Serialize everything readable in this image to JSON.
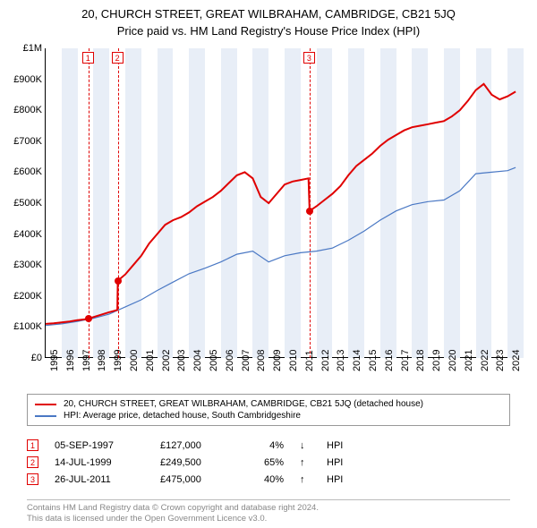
{
  "title_line1": "20, CHURCH STREET, GREAT WILBRAHAM, CAMBRIDGE, CB21 5JQ",
  "title_line2": "Price paid vs. HM Land Registry's House Price Index (HPI)",
  "chart": {
    "type": "line",
    "background_color": "#ffffff",
    "x_range": [
      1995,
      2025
    ],
    "y_range": [
      0,
      1000000
    ],
    "y_ticks": [
      0,
      100000,
      200000,
      300000,
      400000,
      500000,
      600000,
      700000,
      800000,
      900000,
      1000000
    ],
    "y_tick_labels": [
      "£0",
      "£100K",
      "£200K",
      "£300K",
      "£400K",
      "£500K",
      "£600K",
      "£700K",
      "£800K",
      "£900K",
      "£1M"
    ],
    "x_ticks": [
      1995,
      1996,
      1997,
      1998,
      1999,
      2000,
      2001,
      2002,
      2003,
      2004,
      2005,
      2006,
      2007,
      2008,
      2009,
      2010,
      2011,
      2012,
      2013,
      2014,
      2015,
      2016,
      2017,
      2018,
      2019,
      2020,
      2021,
      2022,
      2023,
      2024
    ],
    "vband_color": "#e8eef7",
    "marker_line_color": "#e00000",
    "axis_fontsize": 11,
    "series": {
      "property": {
        "label": "20, CHURCH STREET, GREAT WILBRAHAM, CAMBRIDGE, CB21 5JQ (detached house)",
        "color": "#e00000",
        "line_width": 2,
        "x": [
          1995.0,
          1995.5,
          1996.0,
          1996.5,
          1997.0,
          1997.5,
          1997.68,
          1997.68,
          1998.0,
          1998.5,
          1999.0,
          1999.5,
          1999.53,
          1999.53,
          2000.0,
          2000.5,
          2001.0,
          2001.5,
          2002.0,
          2002.5,
          2003.0,
          2003.5,
          2004.0,
          2004.5,
          2005.0,
          2005.5,
          2006.0,
          2006.5,
          2007.0,
          2007.5,
          2008.0,
          2008.5,
          2009.0,
          2009.5,
          2010.0,
          2010.5,
          2011.0,
          2011.5,
          2011.57,
          2011.57,
          2012.0,
          2012.5,
          2013.0,
          2013.5,
          2014.0,
          2014.5,
          2015.0,
          2015.5,
          2016.0,
          2016.5,
          2017.0,
          2017.5,
          2018.0,
          2018.5,
          2019.0,
          2019.5,
          2020.0,
          2020.5,
          2021.0,
          2021.5,
          2022.0,
          2022.5,
          2023.0,
          2023.5,
          2024.0,
          2024.5
        ],
        "y": [
          110000,
          112000,
          115000,
          118000,
          122000,
          125000,
          127000,
          127000,
          132000,
          140000,
          148000,
          155000,
          249500,
          249500,
          270000,
          300000,
          330000,
          370000,
          400000,
          430000,
          445000,
          455000,
          470000,
          490000,
          505000,
          520000,
          540000,
          565000,
          590000,
          600000,
          580000,
          520000,
          500000,
          530000,
          560000,
          570000,
          575000,
          580000,
          475000,
          475000,
          490000,
          510000,
          530000,
          555000,
          590000,
          620000,
          640000,
          660000,
          685000,
          705000,
          720000,
          735000,
          745000,
          750000,
          755000,
          760000,
          765000,
          780000,
          800000,
          830000,
          865000,
          885000,
          850000,
          835000,
          845000,
          860000
        ]
      },
      "hpi": {
        "label": "HPI: Average price, detached house, South Cambridgeshire",
        "color": "#4a78c4",
        "line_width": 1.2,
        "x": [
          1995.0,
          1996.0,
          1997.0,
          1998.0,
          1999.0,
          2000.0,
          2001.0,
          2002.0,
          2003.0,
          2004.0,
          2005.0,
          2006.0,
          2007.0,
          2008.0,
          2009.0,
          2010.0,
          2011.0,
          2012.0,
          2013.0,
          2014.0,
          2015.0,
          2016.0,
          2017.0,
          2018.0,
          2019.0,
          2020.0,
          2021.0,
          2022.0,
          2023.0,
          2024.0,
          2024.5
        ],
        "y": [
          105000,
          110000,
          118000,
          128000,
          142000,
          165000,
          188000,
          218000,
          245000,
          272000,
          290000,
          310000,
          335000,
          345000,
          310000,
          330000,
          340000,
          345000,
          355000,
          380000,
          410000,
          445000,
          475000,
          495000,
          505000,
          510000,
          540000,
          595000,
          600000,
          605000,
          615000
        ]
      }
    },
    "sale_markers": [
      {
        "n": "1",
        "x": 1997.68,
        "y": 127000
      },
      {
        "n": "2",
        "x": 1999.53,
        "y": 249500
      },
      {
        "n": "3",
        "x": 2011.57,
        "y": 475000
      }
    ]
  },
  "legend": {
    "items": [
      {
        "color": "#e00000",
        "label": "20, CHURCH STREET, GREAT WILBRAHAM, CAMBRIDGE, CB21 5JQ (detached house)"
      },
      {
        "color": "#4a78c4",
        "label": "HPI: Average price, detached house, South Cambridgeshire"
      }
    ]
  },
  "events": [
    {
      "n": "1",
      "date": "05-SEP-1997",
      "price": "£127,000",
      "pct": "4%",
      "arrow": "↓",
      "tag": "HPI"
    },
    {
      "n": "2",
      "date": "14-JUL-1999",
      "price": "£249,500",
      "pct": "65%",
      "arrow": "↑",
      "tag": "HPI"
    },
    {
      "n": "3",
      "date": "26-JUL-2011",
      "price": "£475,000",
      "pct": "40%",
      "arrow": "↑",
      "tag": "HPI"
    }
  ],
  "footer_line1": "Contains HM Land Registry data © Crown copyright and database right 2024.",
  "footer_line2": "This data is licensed under the Open Government Licence v3.0."
}
